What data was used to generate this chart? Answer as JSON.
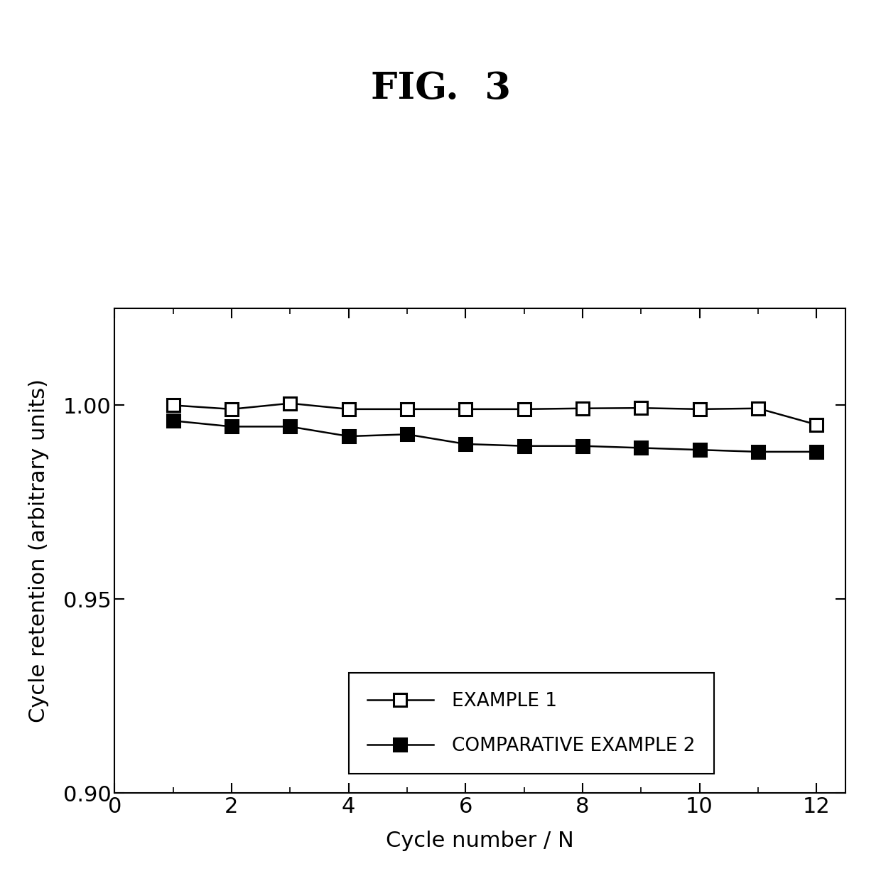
{
  "title": "FIG.  3",
  "xlabel": "Cycle number / N",
  "ylabel": "Cycle retention (arbitrary units)",
  "xlim": [
    0,
    12.5
  ],
  "ylim": [
    0.9,
    1.025
  ],
  "yticks": [
    0.9,
    0.95,
    1.0
  ],
  "xticks": [
    0,
    2,
    4,
    6,
    8,
    10,
    12
  ],
  "xticks_minor": [
    1,
    3,
    5,
    7,
    9,
    11
  ],
  "example1_x": [
    1,
    2,
    3,
    4,
    5,
    6,
    7,
    8,
    9,
    10,
    11,
    12
  ],
  "example1_y": [
    1.0,
    0.999,
    1.0005,
    0.999,
    0.999,
    0.999,
    0.999,
    0.9992,
    0.9993,
    0.999,
    0.9992,
    0.995
  ],
  "example2_x": [
    1,
    2,
    3,
    4,
    5,
    6,
    7,
    8,
    9,
    10,
    11,
    12
  ],
  "example2_y": [
    0.996,
    0.9945,
    0.9945,
    0.992,
    0.9925,
    0.99,
    0.9895,
    0.9895,
    0.989,
    0.9885,
    0.988,
    0.988
  ],
  "legend_labels": [
    "EXAMPLE 1",
    "COMPARATIVE EXAMPLE 2"
  ],
  "background_color": "#ffffff",
  "line_color": "#000000",
  "title_fontsize": 38,
  "label_fontsize": 22,
  "tick_fontsize": 22,
  "legend_fontsize": 19,
  "marker_size": 13,
  "line_width": 1.8
}
